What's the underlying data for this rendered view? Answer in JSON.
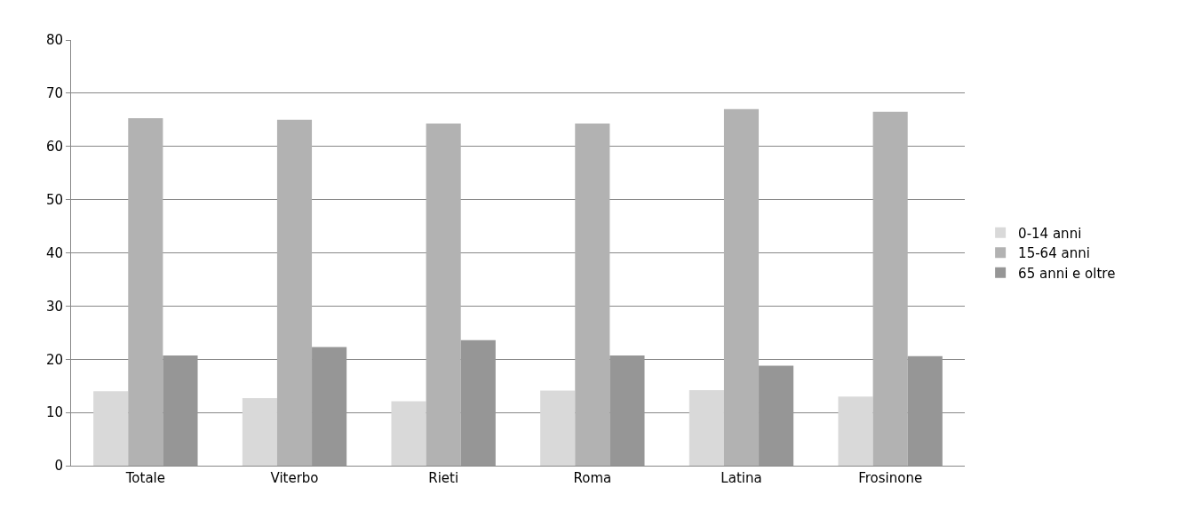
{
  "chart_data": {
    "type": "bar",
    "categories": [
      "Totale",
      "Viterbo",
      "Rieti",
      "Roma",
      "Latina",
      "Frosinone"
    ],
    "series": [
      {
        "name": "0-14 anni",
        "color": "#d9d9d9",
        "values": [
          14.0,
          12.7,
          12.1,
          14.1,
          14.2,
          13.0
        ]
      },
      {
        "name": "15-64 anni",
        "color": "#b2b2b2",
        "values": [
          65.3,
          65.0,
          64.3,
          64.3,
          67.0,
          66.5
        ]
      },
      {
        "name": "65 anni e oltre",
        "color": "#969696",
        "values": [
          20.7,
          22.3,
          23.6,
          20.7,
          18.8,
          20.6
        ]
      }
    ],
    "ylim": [
      0,
      80
    ],
    "yticks": [
      0,
      10,
      20,
      30,
      40,
      50,
      60,
      70,
      80
    ],
    "grid": "y",
    "legend": "right"
  }
}
